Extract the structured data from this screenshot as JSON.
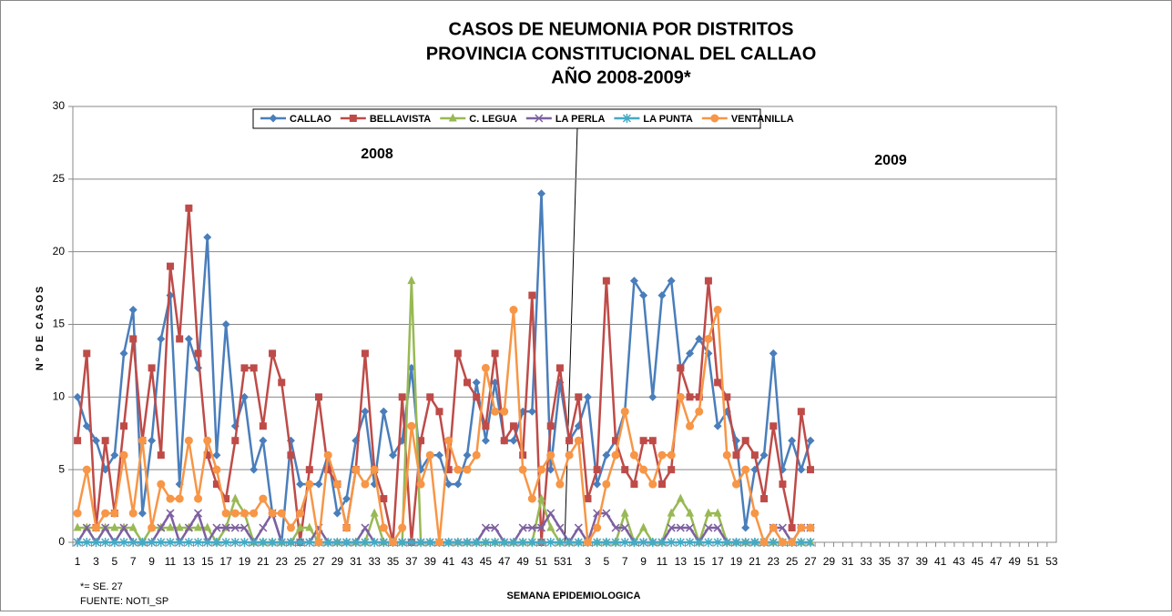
{
  "chart_data": {
    "type": "line",
    "title": [
      "CASOS DE NEUMONIA POR DISTRITOS",
      "PROVINCIA CONSTITUCIONAL DEL CALLAO",
      "AÑO 2008-2009*"
    ],
    "x_label": "SEMANA EPIDEMIOLOGICA",
    "y_label": "Nº DE CASOS",
    "annotations": [
      "2008",
      "2009"
    ],
    "notes": [
      "*= SE. 27",
      "FUENTE: NOTI_SP"
    ],
    "legend": "top",
    "grid": true,
    "ylim": [
      0,
      30
    ],
    "yticks": [
      0,
      5,
      10,
      15,
      20,
      25,
      30
    ],
    "categories": [
      "1",
      null,
      "3",
      null,
      "5",
      null,
      "7",
      null,
      "9",
      null,
      "11",
      null,
      "13",
      null,
      "15",
      null,
      "17",
      null,
      "19",
      null,
      "21",
      null,
      "23",
      null,
      "25",
      null,
      "27",
      null,
      "29",
      null,
      "31",
      null,
      "33",
      null,
      "35",
      null,
      "37",
      null,
      "39",
      null,
      "41",
      null,
      "43",
      null,
      "45",
      null,
      "47",
      null,
      "49",
      null,
      "51",
      null,
      "53",
      "1",
      null,
      "3",
      null,
      "5",
      null,
      "7",
      null,
      "9",
      null,
      "11",
      null,
      "13",
      null,
      "15",
      null,
      "17",
      null,
      "19",
      null,
      "21",
      null,
      "23",
      null,
      "25",
      null,
      "27",
      null,
      "29",
      null,
      "31",
      null,
      "33",
      null,
      "35",
      null,
      "37",
      null,
      "39",
      null,
      "41",
      null,
      "43",
      null,
      "45",
      null,
      "47",
      null,
      "49",
      null,
      "51",
      null,
      "53"
    ],
    "series": [
      {
        "name": "CALLAO",
        "color": "#4a7ebb",
        "marker": "diamond",
        "values": [
          10,
          8,
          7,
          5,
          6,
          13,
          16,
          2,
          7,
          14,
          17,
          4,
          14,
          12,
          21,
          6,
          15,
          8,
          10,
          5,
          7,
          2,
          0,
          7,
          4,
          4,
          4,
          6,
          2,
          3,
          7,
          9,
          4,
          9,
          6,
          7,
          12,
          5,
          6,
          6,
          4,
          4,
          6,
          11,
          7,
          11,
          7,
          7,
          9,
          9,
          24,
          5,
          11,
          7,
          8,
          10,
          4,
          6,
          7,
          9,
          18,
          17,
          10,
          17,
          18,
          12,
          13,
          14,
          13,
          8,
          9,
          7,
          1,
          5,
          6,
          13,
          5,
          7,
          5,
          7,
          null,
          null,
          null,
          null,
          null,
          null,
          null,
          null,
          null,
          null,
          null,
          null,
          null,
          null,
          null,
          null,
          null,
          null,
          null,
          null,
          null,
          null,
          null,
          null,
          null,
          null
        ]
      },
      {
        "name": "BELLAVISTA",
        "color": "#be4b48",
        "marker": "square",
        "values": [
          7,
          13,
          1,
          7,
          2,
          8,
          14,
          7,
          12,
          6,
          19,
          14,
          23,
          13,
          6,
          4,
          3,
          7,
          12,
          12,
          8,
          13,
          11,
          6,
          0,
          5,
          10,
          5,
          4,
          1,
          5,
          13,
          5,
          3,
          0,
          10,
          0,
          7,
          10,
          9,
          5,
          13,
          11,
          10,
          8,
          13,
          7,
          8,
          6,
          17,
          0,
          8,
          12,
          7,
          10,
          3,
          5,
          18,
          7,
          5,
          4,
          7,
          7,
          4,
          5,
          12,
          10,
          10,
          18,
          11,
          10,
          6,
          7,
          6,
          3,
          8,
          4,
          1,
          9,
          5,
          null,
          null,
          null,
          null,
          null,
          null,
          null,
          null,
          null,
          null,
          null,
          null,
          null,
          null,
          null,
          null,
          null,
          null,
          null,
          null,
          null,
          null,
          null,
          null,
          null,
          null
        ]
      },
      {
        "name": "C. LEGUA",
        "color": "#98b954",
        "marker": "triangle",
        "values": [
          1,
          1,
          1,
          1,
          1,
          1,
          1,
          0,
          1,
          1,
          1,
          1,
          1,
          1,
          1,
          0,
          1,
          3,
          2,
          0,
          0,
          0,
          0,
          0,
          1,
          1,
          0,
          0,
          0,
          0,
          0,
          0,
          2,
          0,
          0,
          0,
          18,
          0,
          0,
          0,
          0,
          0,
          0,
          0,
          0,
          0,
          0,
          0,
          0,
          0,
          3,
          1,
          0,
          0,
          0,
          0,
          0,
          0,
          0,
          2,
          0,
          1,
          0,
          0,
          2,
          3,
          2,
          0,
          2,
          2,
          0,
          0,
          0,
          0,
          0,
          0,
          0,
          0,
          0,
          0,
          null,
          null,
          null,
          null,
          null,
          null,
          null,
          null,
          null,
          null,
          null,
          null,
          null,
          null,
          null,
          null,
          null,
          null,
          null,
          null,
          null,
          null,
          null,
          null,
          null,
          null
        ]
      },
      {
        "name": "LA PERLA",
        "color": "#7d60a0",
        "marker": "x",
        "values": [
          0,
          1,
          0,
          1,
          0,
          1,
          0,
          0,
          0,
          1,
          2,
          0,
          1,
          2,
          0,
          1,
          1,
          1,
          1,
          0,
          1,
          2,
          0,
          0,
          0,
          0,
          1,
          0,
          0,
          0,
          0,
          1,
          0,
          0,
          0,
          0,
          0,
          0,
          0,
          0,
          0,
          0,
          0,
          0,
          1,
          1,
          0,
          0,
          1,
          1,
          1,
          2,
          1,
          0,
          1,
          0,
          2,
          2,
          1,
          1,
          0,
          0,
          0,
          0,
          1,
          1,
          1,
          0,
          1,
          1,
          0,
          0,
          0,
          0,
          0,
          1,
          1,
          0,
          1,
          1,
          null,
          null,
          null,
          null,
          null,
          null,
          null,
          null,
          null,
          null,
          null,
          null,
          null,
          null,
          null,
          null,
          null,
          null,
          null,
          null,
          null,
          null,
          null,
          null,
          null,
          null
        ]
      },
      {
        "name": "LA PUNTA",
        "color": "#46aac5",
        "marker": "star",
        "values": [
          0,
          0,
          0,
          0,
          0,
          0,
          0,
          0,
          0,
          0,
          0,
          0,
          0,
          0,
          0,
          0,
          0,
          0,
          0,
          0,
          0,
          0,
          0,
          0,
          0,
          0,
          0,
          0,
          0,
          0,
          0,
          0,
          0,
          0,
          0,
          0,
          0,
          0,
          0,
          0,
          0,
          0,
          0,
          0,
          0,
          0,
          0,
          0,
          0,
          0,
          0,
          0,
          0,
          0,
          0,
          0,
          0,
          0,
          0,
          0,
          0,
          0,
          0,
          0,
          0,
          0,
          0,
          0,
          0,
          0,
          0,
          0,
          0,
          0,
          0,
          0,
          0,
          0,
          0,
          0,
          null,
          null,
          null,
          null,
          null,
          null,
          null,
          null,
          null,
          null,
          null,
          null,
          null,
          null,
          null,
          null,
          null,
          null,
          null,
          null,
          null,
          null,
          null,
          null,
          null,
          null
        ]
      },
      {
        "name": "VENTANILLA",
        "color": "#f79646",
        "marker": "circle",
        "values": [
          2,
          5,
          1,
          2,
          2,
          6,
          2,
          7,
          1,
          4,
          3,
          3,
          7,
          3,
          7,
          5,
          2,
          2,
          2,
          2,
          3,
          2,
          2,
          1,
          2,
          4,
          0,
          6,
          4,
          1,
          5,
          4,
          5,
          1,
          0,
          1,
          8,
          4,
          6,
          0,
          7,
          5,
          5,
          6,
          12,
          9,
          9,
          16,
          5,
          3,
          5,
          6,
          4,
          6,
          7,
          0,
          1,
          4,
          6,
          9,
          6,
          5,
          4,
          6,
          6,
          10,
          8,
          9,
          14,
          16,
          6,
          4,
          5,
          2,
          0,
          1,
          0,
          0,
          1,
          1,
          null,
          null,
          null,
          null,
          null,
          null,
          null,
          null,
          null,
          null,
          null,
          null,
          null,
          null,
          null,
          null,
          null,
          null,
          null,
          null,
          null,
          null,
          null,
          null,
          null,
          null
        ]
      }
    ]
  }
}
